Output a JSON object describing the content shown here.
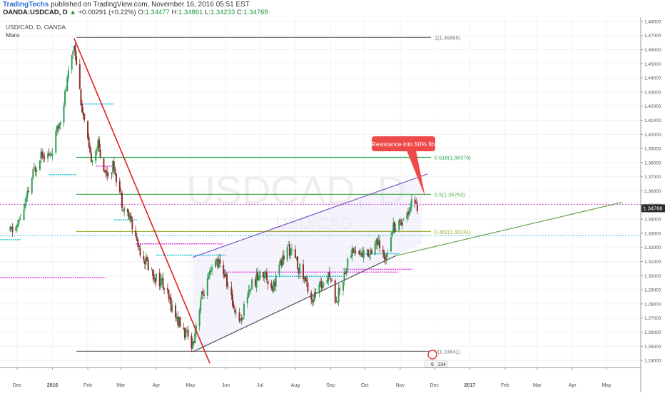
{
  "header": {
    "brand": "TradingTechs",
    "published_text": "published on TradingView.com, November 16, 2016 05:51 EST",
    "symbol_line": "OANDA:USDCAD, D",
    "change_arrow": "▲",
    "change": "+0.00291 (+0.22%)",
    "o_label": "O:",
    "o_value": "1.34477",
    "h_label": "H:",
    "h_value": "1.34861",
    "l_label": "L:",
    "l_value": "1.34233",
    "c_label": "C:",
    "c_value": "1.34768"
  },
  "legend": {
    "series": "USD/CAD, D, OANDA",
    "indicator": "Mara"
  },
  "watermark": {
    "big": "USDCAD, D",
    "small": "USD/CAD"
  },
  "callout": "Resistance into 50% fib",
  "events": {
    "badge": "6",
    "count": "134"
  },
  "current_price_label": "1.34768",
  "chart_data": {
    "type": "candlestick",
    "x_axis_labels": [
      "Dec",
      "2016",
      "Feb",
      "Mar",
      "Apr",
      "May",
      "Jun",
      "Jul",
      "Aug",
      "Sep",
      "Oct",
      "Nov",
      "Dec",
      "2017",
      "Feb",
      "Mar",
      "Apr",
      "May"
    ],
    "y_axis_labels": [
      "1.48000",
      "1.47000",
      "1.46000",
      "1.45000",
      "1.44000",
      "1.43000",
      "1.42000",
      "1.41000",
      "1.40000",
      "1.39000",
      "1.38000",
      "1.37000",
      "1.36000",
      "1.35000",
      "1.34000",
      "1.33000",
      "1.32000",
      "1.31000",
      "1.30000",
      "1.29000",
      "1.28000",
      "1.27000",
      "1.26000",
      "1.25000",
      "1.24000"
    ],
    "ylim": [
      1.235,
      1.483
    ],
    "price_path": [
      [
        "2015-11-25",
        1.331
      ],
      [
        "2015-12-01",
        1.335
      ],
      [
        "2015-12-08",
        1.35
      ],
      [
        "2015-12-15",
        1.372
      ],
      [
        "2015-12-22",
        1.388
      ],
      [
        "2015-12-30",
        1.384
      ],
      [
        "2016-01-06",
        1.405
      ],
      [
        "2016-01-12",
        1.428
      ],
      [
        "2016-01-20",
        1.465
      ],
      [
        "2016-01-27",
        1.418
      ],
      [
        "2016-02-03",
        1.383
      ],
      [
        "2016-02-10",
        1.392
      ],
      [
        "2016-02-17",
        1.372
      ],
      [
        "2016-02-24",
        1.378
      ],
      [
        "2016-03-02",
        1.352
      ],
      [
        "2016-03-09",
        1.34
      ],
      [
        "2016-03-16",
        1.322
      ],
      [
        "2016-03-23",
        1.31
      ],
      [
        "2016-03-30",
        1.3
      ],
      [
        "2016-04-06",
        1.295
      ],
      [
        "2016-04-13",
        1.281
      ],
      [
        "2016-04-20",
        1.268
      ],
      [
        "2016-04-27",
        1.258
      ],
      [
        "2016-05-03",
        1.252
      ],
      [
        "2016-05-10",
        1.283
      ],
      [
        "2016-05-17",
        1.297
      ],
      [
        "2016-05-24",
        1.311
      ],
      [
        "2016-05-31",
        1.301
      ],
      [
        "2016-06-07",
        1.28
      ],
      [
        "2016-06-14",
        1.268
      ],
      [
        "2016-06-21",
        1.29
      ],
      [
        "2016-06-28",
        1.298
      ],
      [
        "2016-07-05",
        1.302
      ],
      [
        "2016-07-12",
        1.292
      ],
      [
        "2016-07-19",
        1.308
      ],
      [
        "2016-07-26",
        1.32
      ],
      [
        "2016-08-02",
        1.309
      ],
      [
        "2016-08-09",
        1.298
      ],
      [
        "2016-08-16",
        1.283
      ],
      [
        "2016-08-23",
        1.292
      ],
      [
        "2016-08-30",
        1.303
      ],
      [
        "2016-09-06",
        1.282
      ],
      [
        "2016-09-13",
        1.302
      ],
      [
        "2016-09-20",
        1.319
      ],
      [
        "2016-09-27",
        1.315
      ],
      [
        "2016-10-04",
        1.316
      ],
      [
        "2016-10-11",
        1.325
      ],
      [
        "2016-10-18",
        1.311
      ],
      [
        "2016-10-25",
        1.334
      ],
      [
        "2016-11-01",
        1.338
      ],
      [
        "2016-11-08",
        1.345
      ],
      [
        "2016-11-11",
        1.355
      ],
      [
        "2016-11-16",
        1.348
      ]
    ],
    "last_close": 1.34768,
    "fib_levels": [
      {
        "label": "1(1.46865)",
        "value": 1.46865,
        "color": "#777777"
      },
      {
        "label": "0.618(1.38376)",
        "value": 1.38376,
        "color": "#24a654"
      },
      {
        "label": "0.5(1.35753)",
        "value": 1.35753,
        "color": "#4caf50"
      },
      {
        "label": "0.382(1.33131)",
        "value": 1.33131,
        "color": "#9aa51e"
      },
      {
        "label": "0(1.24641)",
        "value": 1.24641,
        "color": "#777777"
      }
    ],
    "trendlines": [
      {
        "from": [
          "2016-01-20",
          1.468
        ],
        "to": [
          "2016-05-18",
          1.238
        ],
        "color": "#e02020"
      },
      {
        "from": [
          "2016-05-03",
          1.246
        ],
        "to": [
          "2016-10-28",
          1.314
        ],
        "color": "#555555"
      },
      {
        "from": [
          "2016-05-03",
          1.313
        ],
        "to": [
          "2016-11-25",
          1.372
        ],
        "color": "#7e57c2"
      },
      {
        "from": [
          "2016-10-28",
          1.314
        ],
        "to": [
          "2017-05-15",
          1.352
        ],
        "color": "#6aa84f"
      }
    ],
    "horizontal_levels": [
      {
        "value": 1.3505,
        "color": "#e040e0",
        "style": "dotted"
      },
      {
        "value": 1.3283,
        "color": "#26c6da",
        "style": "dotted"
      }
    ]
  }
}
